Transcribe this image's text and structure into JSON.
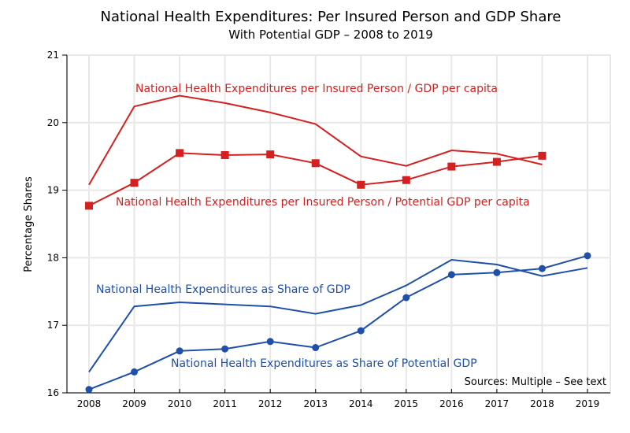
{
  "chart_data": {
    "type": "line",
    "title": "National Health Expenditures:  Per Insured Person and GDP Share",
    "subtitle": "With Potential GDP – 2008 to 2019",
    "xlabel": "",
    "ylabel": "Percentage Shares",
    "x": [
      2008,
      2009,
      2010,
      2011,
      2012,
      2013,
      2014,
      2015,
      2016,
      2017,
      2018,
      2019
    ],
    "x_tick_labels": [
      "2008",
      "2009",
      "2010",
      "2011",
      "2012",
      "2013",
      "2014",
      "2015",
      "2016",
      "2017",
      "2018",
      "2019"
    ],
    "ylim": [
      16,
      21
    ],
    "y_ticks": [
      16,
      17,
      18,
      19,
      20,
      21
    ],
    "y_tick_labels": [
      "16",
      "17",
      "18",
      "19",
      "20",
      "21"
    ],
    "grid": true,
    "legend": "inline labels",
    "source_note": "Sources:  Multiple – See text",
    "series": [
      {
        "name": "National Health Expenditures per Insured Person / GDP per capita",
        "color": "#d42020",
        "marker": "none",
        "values": [
          19.08,
          20.24,
          20.4,
          20.29,
          20.15,
          19.98,
          19.5,
          19.36,
          19.59,
          19.54,
          19.38,
          null
        ]
      },
      {
        "name": "National Health Expenditures per Insured Person / Potential GDP per capita",
        "color": "#d42020",
        "marker": "square",
        "values": [
          18.77,
          19.11,
          19.55,
          19.52,
          19.53,
          19.4,
          19.08,
          19.15,
          19.35,
          19.42,
          19.51,
          null
        ]
      },
      {
        "name": "National Health Expenditures as Share of GDP",
        "color": "#1f4fa8",
        "marker": "none",
        "values": [
          16.31,
          17.28,
          17.34,
          17.31,
          17.28,
          17.17,
          17.3,
          17.59,
          17.97,
          17.9,
          17.73,
          17.85
        ]
      },
      {
        "name": "National Health Expenditures as Share of Potential GDP",
        "color": "#1f4fa8",
        "marker": "circle",
        "values": [
          16.05,
          16.31,
          16.62,
          16.65,
          16.76,
          16.67,
          16.92,
          17.41,
          17.75,
          17.78,
          17.84,
          18.03
        ]
      }
    ]
  }
}
